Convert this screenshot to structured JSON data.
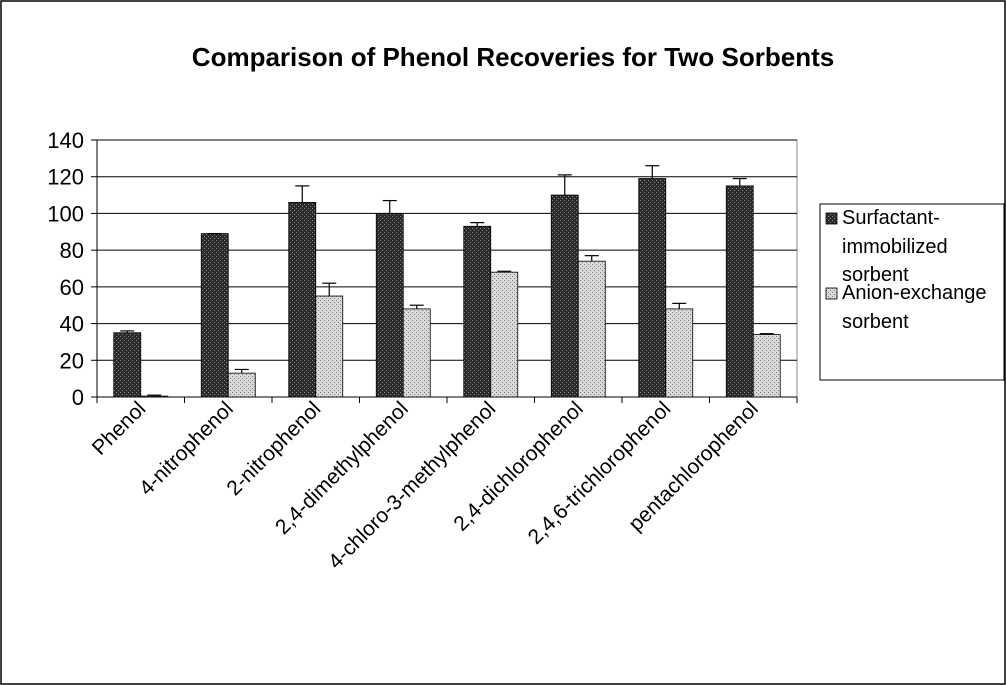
{
  "chart_data": {
    "type": "bar",
    "title": "Comparison of Phenol Recoveries for Two Sorbents",
    "categories": [
      "Phenol",
      "4-nitrophenol",
      "2-nitrophenol",
      "2,4-dimethylphenol",
      "4-chloro-3-methylphenol",
      "2,4-dichlorophenol",
      "2,4,6-trichlorophenol",
      "pentachlorophenol"
    ],
    "series": [
      {
        "name": "Surfactant-immobilized sorbent",
        "color": "#2b2b2b",
        "values": [
          35,
          89,
          106,
          100,
          93,
          110,
          119,
          115
        ],
        "errors": [
          1,
          0,
          9,
          7,
          2,
          11,
          7,
          4
        ]
      },
      {
        "name": "Anion-exchange sorbent",
        "color": "#d9d9d9",
        "values": [
          0.5,
          13,
          55,
          48,
          68,
          74,
          48,
          34
        ],
        "errors": [
          0.5,
          2,
          7,
          2,
          0.5,
          3,
          3,
          0.5
        ]
      }
    ],
    "ylim": [
      0,
      140
    ],
    "yticks": [
      0,
      20,
      40,
      60,
      80,
      100,
      120,
      140
    ],
    "grid": true,
    "legend": "right"
  }
}
